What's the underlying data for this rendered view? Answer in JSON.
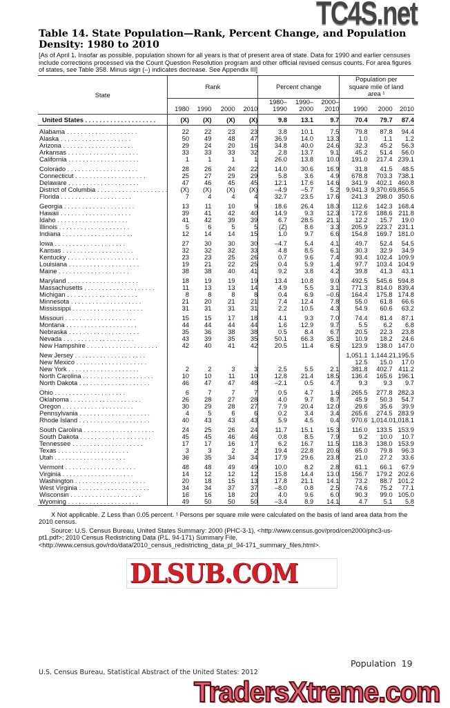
{
  "title": "Table 14. State Population—Rank, Percent Change, and Population Density: 1980 to 2010",
  "headnote": "[As of April 1. Insofar as possible, population shown for all years is that of present area of state. Data for 1990 and earlier censuses include corrections processed via the Count Question Resolution program and other official revised census counts. For area figures of states, see Table 358. Minus sign (–) indicates decrease. See Appendix III]",
  "table": {
    "stub_header": "State",
    "group_headers": [
      "Rank",
      "Percent change",
      "Population per square mile of land area ¹"
    ],
    "columns": [
      "1980",
      "1990",
      "2000",
      "2010",
      "1980–\n1990",
      "1990–\n2000",
      "2000–\n2010",
      "1990",
      "2000",
      "2010"
    ],
    "total": [
      "United States",
      "(X)",
      "(X)",
      "(X)",
      "(X)",
      "9.8",
      "13.1",
      "9.7",
      "70.4",
      "79.7",
      "87.4"
    ],
    "groups": [
      [
        [
          "Alabama",
          "22",
          "22",
          "23",
          "23",
          "3.8",
          "10.1",
          "7.5",
          "79.8",
          "87.8",
          "94.4"
        ],
        [
          "Alaska",
          "50",
          "49",
          "48",
          "47",
          "36.9",
          "14.0",
          "13.3",
          "1.0",
          "1.1",
          "1.2"
        ],
        [
          "Arizona",
          "29",
          "24",
          "20",
          "16",
          "34.8",
          "40.0",
          "24.6",
          "32.3",
          "45.2",
          "56.3"
        ],
        [
          "Arkansas",
          "33",
          "33",
          "33",
          "32",
          "2.8",
          "13.7",
          "9.1",
          "45.2",
          "51.4",
          "56.0"
        ],
        [
          "California",
          "1",
          "1",
          "1",
          "1",
          "26.0",
          "13.8",
          "10.0",
          "191.0",
          "217.4",
          "239.1"
        ]
      ],
      [
        [
          "Colorado",
          "28",
          "26",
          "24",
          "22",
          "14.0",
          "30.6",
          "16.9",
          "31.8",
          "41.5",
          "48.5"
        ],
        [
          "Connecticut",
          "25",
          "27",
          "29",
          "29",
          "5.8",
          "3.6",
          "4.9",
          "678.8",
          "703.3",
          "738.1"
        ],
        [
          "Delaware",
          "47",
          "46",
          "45",
          "45",
          "12.1",
          "17.6",
          "14.6",
          "341.9",
          "402.1",
          "460.8"
        ],
        [
          "District of Columbia",
          "(X)",
          "(X)",
          "(X)",
          "(X)",
          "–4.9",
          "–5.7",
          "5.2",
          "9,941.3",
          "9,370.6",
          "9,856.5"
        ],
        [
          "Florida",
          "7",
          "4",
          "4",
          "4",
          "32.7",
          "23.5",
          "17.6",
          "241.3",
          "298.0",
          "350.6"
        ]
      ],
      [
        [
          "Georgia",
          "13",
          "11",
          "10",
          "9",
          "18.6",
          "26.4",
          "18.3",
          "112.6",
          "142.3",
          "168.4"
        ],
        [
          "Hawaii",
          "39",
          "41",
          "42",
          "40",
          "14.9",
          "9.3",
          "12.3",
          "172.6",
          "188.6",
          "211.8"
        ],
        [
          "Idaho",
          "41",
          "42",
          "39",
          "39",
          "6.7",
          "28.5",
          "21.1",
          "12.2",
          "15.7",
          "19.0"
        ],
        [
          "Illinois",
          "5",
          "6",
          "5",
          "5",
          "(Z)",
          "8.6",
          "3.3",
          "205.9",
          "223.7",
          "231.1"
        ],
        [
          "Indiana",
          "12",
          "14",
          "14",
          "15",
          "1.0",
          "9.7",
          "6.6",
          "154.8",
          "169.7",
          "181.0"
        ]
      ],
      [
        [
          "Iowa",
          "27",
          "30",
          "30",
          "30",
          "–4.7",
          "5.4",
          "4.1",
          "49.7",
          "52.4",
          "54.5"
        ],
        [
          "Kansas",
          "32",
          "32",
          "32",
          "33",
          "4.8",
          "8.5",
          "6.1",
          "30.3",
          "32.9",
          "34.9"
        ],
        [
          "Kentucky",
          "23",
          "23",
          "25",
          "26",
          "0.7",
          "9.6",
          "7.4",
          "93.4",
          "102.4",
          "109.9"
        ],
        [
          "Louisiana",
          "19",
          "21",
          "22",
          "25",
          "0.4",
          "5.9",
          "1.4",
          "97.7",
          "103.4",
          "104.9"
        ],
        [
          "Maine",
          "38",
          "38",
          "40",
          "41",
          "9.2",
          "3.8",
          "4.2",
          "39.8",
          "41.3",
          "43.1"
        ]
      ],
      [
        [
          "Maryland",
          "18",
          "19",
          "19",
          "19",
          "13.4",
          "10.8",
          "9.0",
          "492.5",
          "545.6",
          "594.8"
        ],
        [
          "Massachusetts",
          "11",
          "13",
          "13",
          "14",
          "4.9",
          "5.5",
          "3.1",
          "771.3",
          "814.0",
          "839.4"
        ],
        [
          "Michigan",
          "8",
          "8",
          "8",
          "8",
          "0.4",
          "6.9",
          "–0.6",
          "164.4",
          "175.8",
          "174.8"
        ],
        [
          "Minnesota",
          "21",
          "20",
          "21",
          "21",
          "7.4",
          "12.4",
          "7.8",
          "55.0",
          "61.8",
          "66.6"
        ],
        [
          "Mississippi",
          "31",
          "31",
          "31",
          "31",
          "2.2",
          "10.5",
          "4.3",
          "54.9",
          "60.6",
          "63.2"
        ]
      ],
      [
        [
          "Missouri",
          "15",
          "15",
          "17",
          "18",
          "4.1",
          "9.3",
          "7.0",
          "74.4",
          "81.4",
          "87.1"
        ],
        [
          "Montana",
          "44",
          "44",
          "44",
          "44",
          "1.6",
          "12.9",
          "9.7",
          "5.5",
          "6.2",
          "6.8"
        ],
        [
          "Nebraska",
          "35",
          "36",
          "38",
          "38",
          "0.5",
          "8.4",
          "6.7",
          "20.5",
          "22.3",
          "23.8"
        ],
        [
          "Nevada",
          "43",
          "39",
          "35",
          "35",
          "50.1",
          "66.3",
          "35.1",
          "10.9",
          "18.2",
          "24.6"
        ],
        [
          "New Hampshire",
          "42",
          "40",
          "41",
          "42",
          "20.5",
          "11.4",
          "6.5",
          "123.9",
          "138.0",
          "147.0"
        ]
      ],
      [
        [
          "New Jersey",
          "",
          "",
          "",
          "",
          "",
          "",
          "",
          "1,051.1",
          "1,144.2",
          "1,195.5"
        ],
        [
          "New Mexico",
          "",
          "",
          "",
          "",
          "",
          "",
          "",
          "12.5",
          "15.0",
          "17.0"
        ],
        [
          "New York",
          "2",
          "2",
          "3",
          "3",
          "2.5",
          "5.5",
          "2.1",
          "381.8",
          "402.7",
          "411.2"
        ],
        [
          "North Carolina",
          "10",
          "10",
          "11",
          "10",
          "12.8",
          "21.4",
          "18.5",
          "136.4",
          "165.6",
          "196.1"
        ],
        [
          "North Dakota",
          "46",
          "47",
          "47",
          "48",
          "–2.1",
          "0.5",
          "4.7",
          "9.3",
          "9.3",
          "9.7"
        ]
      ],
      [
        [
          "Ohio",
          "6",
          "7",
          "7",
          "7",
          "0.5",
          "4.7",
          "1.6",
          "265.5",
          "277.8",
          "282.3"
        ],
        [
          "Oklahoma",
          "26",
          "28",
          "27",
          "28",
          "4.0",
          "9.7",
          "8.7",
          "45.9",
          "50.3",
          "54.7"
        ],
        [
          "Oregon",
          "30",
          "29",
          "28",
          "27",
          "7.9",
          "20.4",
          "12.0",
          "29.6",
          "35.6",
          "39.9"
        ],
        [
          "Pennsylvania",
          "4",
          "5",
          "6",
          "6",
          "0.2",
          "3.4",
          "3.4",
          "265.6",
          "274.5",
          "283.9"
        ],
        [
          "Rhode Island",
          "40",
          "43",
          "43",
          "43",
          "5.9",
          "4.5",
          "0.4",
          "970.6",
          "1,014.0",
          "1,018.1"
        ]
      ],
      [
        [
          "South Carolina",
          "24",
          "25",
          "26",
          "24",
          "11.7",
          "15.1",
          "15.3",
          "116.0",
          "133.5",
          "153.9"
        ],
        [
          "South Dakota",
          "45",
          "45",
          "46",
          "46",
          "0.8",
          "8.5",
          "7.9",
          "9.2",
          "10.0",
          "10.7"
        ],
        [
          "Tennessee",
          "17",
          "17",
          "16",
          "17",
          "6.2",
          "16.7",
          "11.5",
          "118.3",
          "138.0",
          "153.9"
        ],
        [
          "Texas",
          "3",
          "3",
          "2",
          "2",
          "19.4",
          "22.8",
          "20.6",
          "65.0",
          "79.8",
          "96.3"
        ],
        [
          "Utah",
          "36",
          "35",
          "34",
          "34",
          "17.9",
          "29.6",
          "23.8",
          "21.0",
          "27.2",
          "33.6"
        ]
      ],
      [
        [
          "Vermont",
          "48",
          "48",
          "49",
          "49",
          "10.0",
          "8.2",
          "2.8",
          "61.1",
          "66.1",
          "67.9"
        ],
        [
          "Virginia",
          "14",
          "12",
          "12",
          "12",
          "15.8",
          "14.4",
          "13.0",
          "156.7",
          "179.2",
          "202.6"
        ],
        [
          "Washington",
          "20",
          "18",
          "15",
          "13",
          "17.8",
          "21.1",
          "14.1",
          "73.2",
          "88.7",
          "101.2"
        ],
        [
          "West Virginia",
          "34",
          "34",
          "37",
          "37",
          "–8.0",
          "0.8",
          "2.5",
          "74.6",
          "75.2",
          "77.1"
        ],
        [
          "Wisconsin",
          "16",
          "16",
          "18",
          "20",
          "4.0",
          "9.6",
          "6.0",
          "90.3",
          "99.0",
          "105.0"
        ],
        [
          "Wyoming",
          "49",
          "50",
          "50",
          "50",
          "–3.4",
          "8.9",
          "14.1",
          "4.7",
          "5.1",
          "5.8"
        ]
      ]
    ]
  },
  "footnotes": {
    "notes": "X Not applicable. Z Less than 0.05 percent. ¹ Persons per square mile were calculated on the basis of land area data from the 2010 census.",
    "source": "Source: U.S. Census Bureau, United States Summary: 2000 (PHC-3-1), <http://www.census.gov/prod/cen2000/phc3-us-pt1.pdf>; 2010 Census Redistricting Data (P.L. 94-171) Summary File, <http://www.census.gov/rdo/data/2010_census_redistricting_data_pl_94-171_summary_files.html>."
  },
  "page_footer": {
    "section": "Population",
    "page_number": "19",
    "publication": "U.S. Census Bureau, Statistical Abstract of the United States: 2012"
  },
  "watermarks": {
    "top": "TC4S.net",
    "middle": "DLSUB.COM",
    "bottom": "TradersXtreme.com",
    "middle_color": "#d0202a",
    "bottom_color": "#e06070"
  }
}
